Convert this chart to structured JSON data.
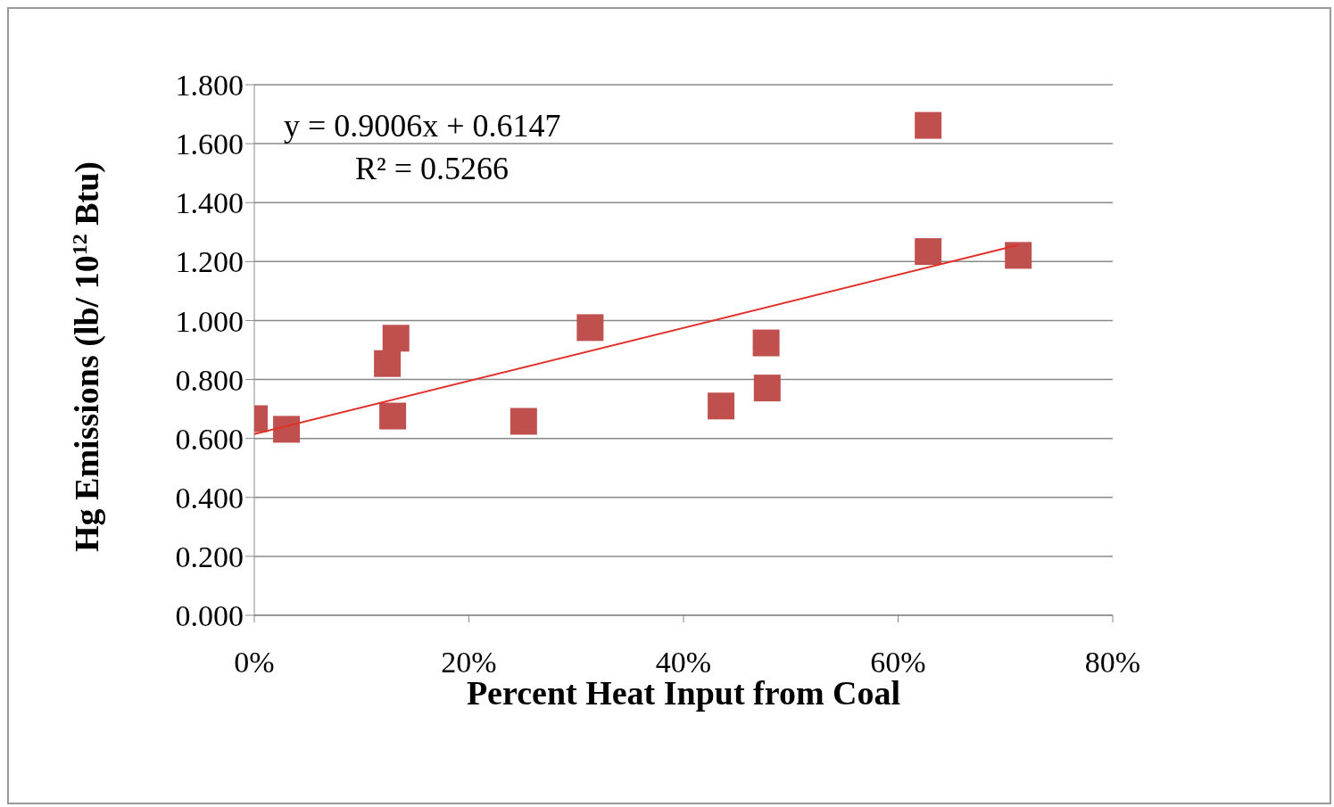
{
  "chart_data": {
    "type": "scatter",
    "xlabel": "Percent Heat Input from Coal",
    "ylabel": "Hg Emissions (lb/ 10$^{12}$ Btu)",
    "xlim": [
      0,
      0.8
    ],
    "xticks": [
      {
        "value": 0,
        "label": "0%"
      },
      {
        "value": 0.2,
        "label": "20%"
      },
      {
        "value": 0.4,
        "label": "40%"
      },
      {
        "value": 0.6,
        "label": "60%"
      },
      {
        "value": 0.8,
        "label": "80%"
      }
    ],
    "ylim": [
      0,
      1.8
    ],
    "yticks": [
      {
        "value": 0,
        "label": "0.000"
      },
      {
        "value": 0.2,
        "label": "0.200"
      },
      {
        "value": 0.4,
        "label": "0.400"
      },
      {
        "value": 0.6,
        "label": "0.600"
      },
      {
        "value": 0.8,
        "label": "0.800"
      },
      {
        "value": 1.0,
        "label": "1.000"
      },
      {
        "value": 1.2,
        "label": "1.200"
      },
      {
        "value": 1.4,
        "label": "1.400"
      },
      {
        "value": 1.6,
        "label": "1.600"
      },
      {
        "value": 1.8,
        "label": "1.800"
      }
    ],
    "grid": "y",
    "legend": false,
    "series": [
      {
        "color": "#c0504d",
        "marker": "square",
        "x": [
          0.0,
          0.03,
          0.124,
          0.132,
          0.129,
          0.251,
          0.313,
          0.435,
          0.477,
          0.478,
          0.628,
          0.628,
          0.712
        ],
        "values": [
          0.667,
          0.631,
          0.854,
          0.94,
          0.676,
          0.658,
          0.976,
          0.71,
          0.924,
          0.771,
          1.662,
          1.234,
          1.221
        ]
      },
      {
        "type": "line",
        "color": "#e0302a",
        "x": [
          0.0,
          0.712
        ],
        "values": [
          0.615,
          1.256
        ]
      }
    ],
    "annotations": [
      "y = 0.9006x + 0.6147",
      "R² = 0.5266"
    ]
  }
}
